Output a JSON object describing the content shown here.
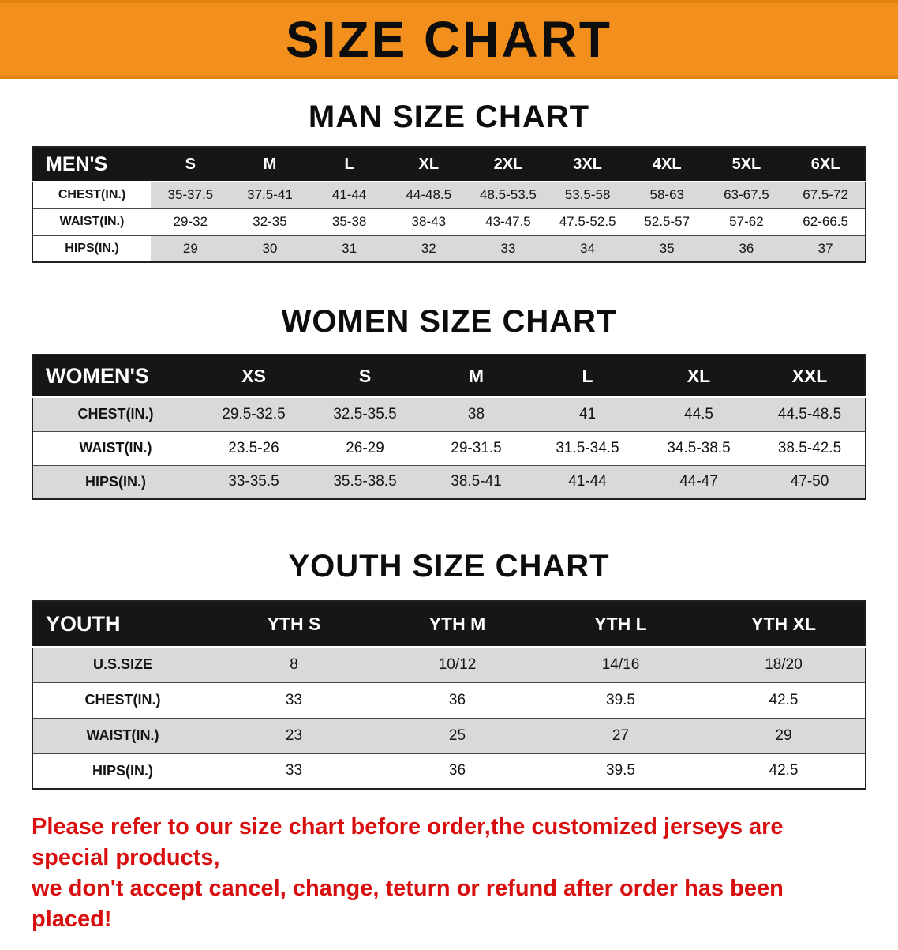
{
  "banner": {
    "title": "SIZE CHART"
  },
  "sections": [
    {
      "id": "men",
      "heading": "MAN SIZE CHART",
      "header": [
        "MEN'S",
        "S",
        "M",
        "L",
        "XL",
        "2XL",
        "3XL",
        "4XL",
        "5XL",
        "6XL"
      ],
      "rows": [
        {
          "label": "CHEST(IN.)",
          "values": [
            "35-37.5",
            "37.5-41",
            "41-44",
            "44-48.5",
            "48.5-53.5",
            "53.5-58",
            "58-63",
            "63-67.5",
            "67.5-72"
          ]
        },
        {
          "label": "WAIST(IN.)",
          "values": [
            "29-32",
            "32-35",
            "35-38",
            "38-43",
            "43-47.5",
            "47.5-52.5",
            "52.5-57",
            "57-62",
            "62-66.5"
          ]
        },
        {
          "label": "HIPS(IN.)",
          "values": [
            "29",
            "30",
            "31",
            "32",
            "33",
            "34",
            "35",
            "36",
            "37"
          ]
        }
      ]
    },
    {
      "id": "women",
      "heading": "WOMEN SIZE CHART",
      "header": [
        "WOMEN'S",
        "XS",
        "S",
        "M",
        "L",
        "XL",
        "XXL"
      ],
      "rows": [
        {
          "label": "CHEST(IN.)",
          "values": [
            "29.5-32.5",
            "32.5-35.5",
            "38",
            "41",
            "44.5",
            "44.5-48.5"
          ]
        },
        {
          "label": "WAIST(IN.)",
          "values": [
            "23.5-26",
            "26-29",
            "29-31.5",
            "31.5-34.5",
            "34.5-38.5",
            "38.5-42.5"
          ]
        },
        {
          "label": "HIPS(IN.)",
          "values": [
            "33-35.5",
            "35.5-38.5",
            "38.5-41",
            "41-44",
            "44-47",
            "47-50"
          ]
        }
      ]
    },
    {
      "id": "youth",
      "heading": "YOUTH SIZE CHART",
      "header": [
        "YOUTH",
        "YTH S",
        "YTH M",
        "YTH L",
        "YTH XL"
      ],
      "rows": [
        {
          "label": "U.S.SIZE",
          "values": [
            "8",
            "10/12",
            "14/16",
            "18/20"
          ]
        },
        {
          "label": "CHEST(IN.)",
          "values": [
            "33",
            "36",
            "39.5",
            "42.5"
          ]
        },
        {
          "label": "WAIST(IN.)",
          "values": [
            "23",
            "25",
            "27",
            "29"
          ]
        },
        {
          "label": "HIPS(IN.)",
          "values": [
            "33",
            "36",
            "39.5",
            "42.5"
          ]
        }
      ]
    }
  ],
  "disclaimer": {
    "lines": [
      "Please refer to our size chart before order,the customized jerseys are special products,",
      "we don't accept cancel, change, teturn or refund after order has been placed!"
    ]
  },
  "colors": {
    "banner_orange": "#F3901D",
    "table_header_black": "#161616",
    "row_gray": "#d9d9d9",
    "disclaimer_red": "#d90f0f"
  }
}
